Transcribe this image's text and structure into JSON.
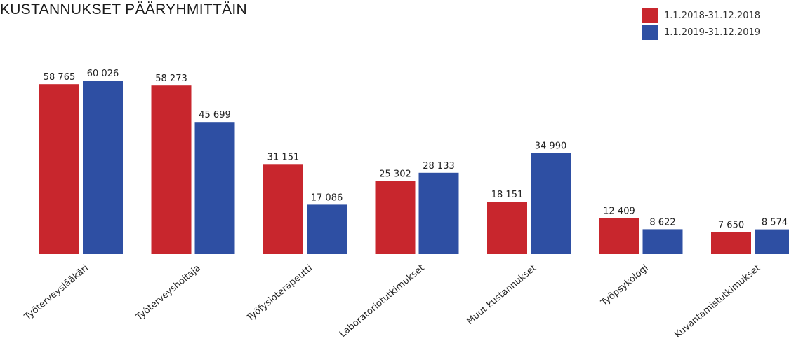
{
  "chart_data": {
    "type": "bar",
    "title": "KUSTANNUKSET PÄÄRYHMITTÄIN",
    "categories": [
      "Työterveyslääkäri",
      "Työterveyshoitaja",
      "Työfysioterapeutti",
      "Laboratoriotutkimukset",
      "Muut kustannukset",
      "Työpsykologi",
      "Kuvantamistutkimukset"
    ],
    "series": [
      {
        "name": "1.1.2018-31.12.2018",
        "color": "#c8262d",
        "values": [
          58765,
          58273,
          31151,
          25302,
          18151,
          12409,
          7650
        ],
        "labels": [
          "58 765",
          "58 273",
          "31 151",
          "25 302",
          "18 151",
          "12 409",
          "7 650"
        ]
      },
      {
        "name": "1.1.2019-31.12.2019",
        "color": "#2e4fa3",
        "values": [
          60026,
          45699,
          17086,
          28133,
          34990,
          8622,
          8574
        ],
        "labels": [
          "60 026",
          "45 699",
          "17 086",
          "28 133",
          "34 990",
          "8 622",
          "8 574"
        ]
      }
    ],
    "ylim": [
      0,
      60026
    ],
    "grid": false,
    "legend_position": "top-right"
  }
}
